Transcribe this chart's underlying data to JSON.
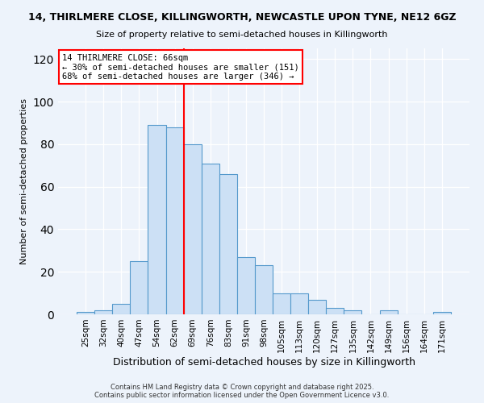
{
  "title_main": "14, THIRLMERE CLOSE, KILLINGWORTH, NEWCASTLE UPON TYNE, NE12 6GZ",
  "title_sub": "Size of property relative to semi-detached houses in Killingworth",
  "xlabel": "Distribution of semi-detached houses by size in Killingworth",
  "ylabel": "Number of semi-detached properties",
  "bar_labels": [
    "25sqm",
    "32sqm",
    "40sqm",
    "47sqm",
    "54sqm",
    "62sqm",
    "69sqm",
    "76sqm",
    "83sqm",
    "91sqm",
    "98sqm",
    "105sqm",
    "113sqm",
    "120sqm",
    "127sqm",
    "135sqm",
    "142sqm",
    "149sqm",
    "156sqm",
    "164sqm",
    "171sqm"
  ],
  "bar_values": [
    1,
    2,
    5,
    25,
    89,
    88,
    80,
    71,
    66,
    27,
    23,
    10,
    10,
    7,
    3,
    2,
    0,
    2,
    0,
    0,
    1
  ],
  "bar_color": "#cce0f5",
  "bar_edge_color": "#5599cc",
  "vline_color": "red",
  "annotation_title": "14 THIRLMERE CLOSE: 66sqm",
  "annotation_line1": "← 30% of semi-detached houses are smaller (151)",
  "annotation_line2": "68% of semi-detached houses are larger (346) →",
  "annotation_box_color": "white",
  "annotation_box_edge_color": "red",
  "ylim": [
    0,
    125
  ],
  "yticks": [
    0,
    20,
    40,
    60,
    80,
    100,
    120
  ],
  "footnote1": "Contains HM Land Registry data © Crown copyright and database right 2025.",
  "footnote2": "Contains public sector information licensed under the Open Government Licence v3.0.",
  "bg_color": "#edf3fb",
  "plot_bg_color": "#edf3fb"
}
